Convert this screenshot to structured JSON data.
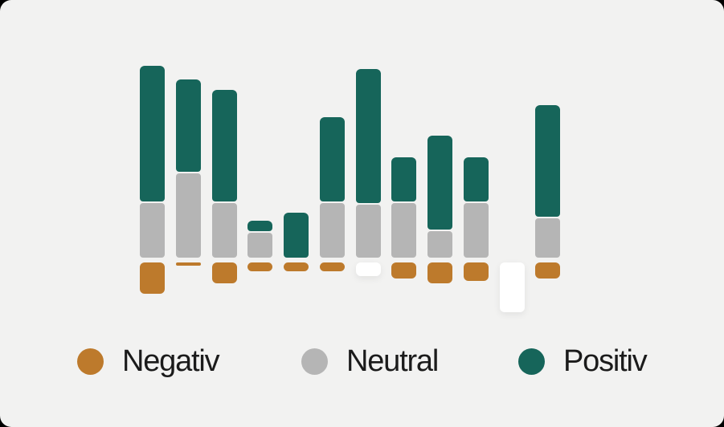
{
  "canvas": {
    "background_color": "#f2f2f1",
    "outside_color": "#000000"
  },
  "chart_data": {
    "type": "bar",
    "stacked": true,
    "orientation": "vertical",
    "title": "",
    "xlabel": "",
    "ylabel": "",
    "axes_visible": false,
    "grid": false,
    "unit": "px-equivalent value units (no numeric axis shown)",
    "baseline": 0,
    "legend_position": "bottom",
    "series_colors": {
      "negative": "#bd7a2c",
      "neutral": "#b5b5b5",
      "positive": "#16655a",
      "missing": "#ffffff"
    },
    "bars": [
      {
        "index": 1,
        "positive": 169,
        "neutral": 68,
        "negative": 39,
        "negative_missing": false
      },
      {
        "index": 2,
        "positive": 115,
        "neutral": 105,
        "negative": 4,
        "negative_missing": false
      },
      {
        "index": 3,
        "positive": 139,
        "neutral": 68,
        "negative": 26,
        "negative_missing": false
      },
      {
        "index": 4,
        "positive": 13,
        "neutral": 31,
        "negative": 11,
        "negative_missing": false
      },
      {
        "index": 5,
        "positive": 56,
        "neutral": 0,
        "negative": 11,
        "negative_missing": false
      },
      {
        "index": 6,
        "positive": 105,
        "neutral": 68,
        "negative": 11,
        "negative_missing": false
      },
      {
        "index": 7,
        "positive": 167,
        "neutral": 66,
        "negative": 17,
        "negative_missing": true
      },
      {
        "index": 8,
        "positive": 55,
        "neutral": 68,
        "negative": 20,
        "negative_missing": false
      },
      {
        "index": 9,
        "positive": 117,
        "neutral": 33,
        "negative": 26,
        "negative_missing": false
      },
      {
        "index": 10,
        "positive": 55,
        "neutral": 68,
        "negative": 23,
        "negative_missing": false
      },
      {
        "index": 11,
        "positive": 0,
        "neutral": 0,
        "negative": 62,
        "negative_missing": true
      },
      {
        "index": 12,
        "positive": 139,
        "neutral": 49,
        "negative": 20,
        "negative_missing": false
      }
    ],
    "legend": {
      "items": [
        {
          "label": "Negativ",
          "color": "#bd7a2c"
        },
        {
          "label": "Neutral",
          "color": "#b5b5b5"
        },
        {
          "label": "Positiv",
          "color": "#16655a"
        }
      ]
    }
  }
}
